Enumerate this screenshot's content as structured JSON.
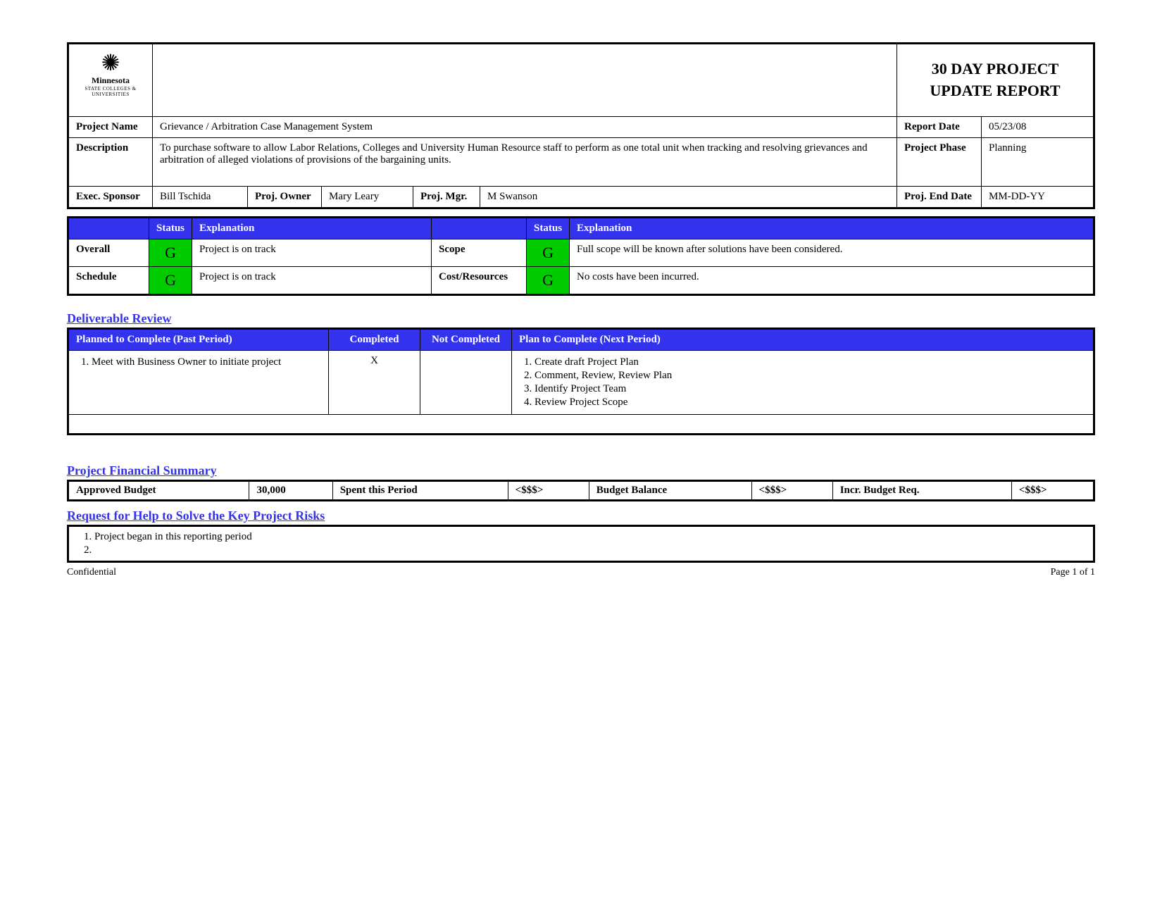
{
  "colors": {
    "header_bg": "#3333ee",
    "header_fg": "#ffffff",
    "status_g_bg": "#00cc00",
    "border": "#000000",
    "link_blue": "#3333ee"
  },
  "logo": {
    "org": "Minnesota",
    "sub": "STATE COLLEGES & UNIVERSITIES"
  },
  "title_line1": "30 DAY PROJECT",
  "title_line2": "UPDATE REPORT",
  "header": {
    "project_name_label": "Project Name",
    "project_name": "Grievance / Arbitration Case Management System",
    "report_date_label": "Report Date",
    "report_date": "05/23/08",
    "description_label": "Description",
    "description": "To purchase software to allow Labor Relations, Colleges and University Human Resource staff to perform as one total unit when tracking and resolving grievances and arbitration of alleged violations of provisions of the bargaining units.",
    "project_phase_label": "Project Phase",
    "project_phase": "Planning",
    "exec_sponsor_label": "Exec. Sponsor",
    "exec_sponsor": "Bill Tschida",
    "proj_owner_label": "Proj. Owner",
    "proj_owner": "Mary Leary",
    "proj_mgr_label": "Proj. Mgr.",
    "proj_mgr": "M Swanson",
    "proj_end_date_label": "Proj. End Date",
    "proj_end_date": "MM-DD-YY"
  },
  "status": {
    "status_label": "Status",
    "explanation_label": "Explanation",
    "rows": [
      {
        "name": "Overall",
        "code": "G",
        "explanation": "Project is on track",
        "name2": "Scope",
        "code2": "G",
        "explanation2": "Full scope will be known after solutions have been considered."
      },
      {
        "name": "Schedule",
        "code": "G",
        "explanation": "Project is on track",
        "name2": "Cost/Resources",
        "code2": "G",
        "explanation2": "No costs have been incurred."
      }
    ]
  },
  "deliverable": {
    "section_title": "Deliverable Review",
    "col_planned": "Planned to Complete (Past Period)",
    "col_completed": "Completed",
    "col_not_completed": "Not Completed",
    "col_next": "Plan to Complete (Next Period)",
    "past_items": [
      "Meet with Business Owner to initiate project"
    ],
    "completed_mark": "X",
    "not_completed_mark": "",
    "next_items": [
      "Create draft Project Plan",
      "Comment, Review, Review Plan",
      "Identify Project Team",
      "Review Project Scope"
    ]
  },
  "financial": {
    "section_title": "Project Financial Summary",
    "approved_budget_label": "Approved Budget",
    "approved_budget": "30,000",
    "spent_label": "Spent this Period",
    "spent": "<$$$>",
    "balance_label": "Budget Balance",
    "balance": "<$$$>",
    "incr_label": "Incr. Budget Req.",
    "incr": "<$$$>"
  },
  "risks": {
    "section_title": "Request for Help to Solve the Key Project Risks",
    "items": [
      "Project began in this reporting period",
      ""
    ]
  },
  "footer": {
    "left": "Confidential",
    "right": "Page 1 of 1"
  }
}
